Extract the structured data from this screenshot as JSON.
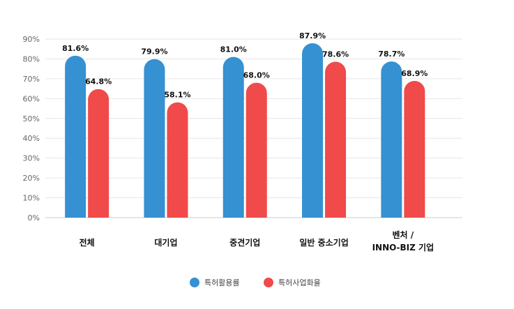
{
  "chart_data": {
    "type": "bar",
    "categories": [
      [
        "전체"
      ],
      [
        "대기업"
      ],
      [
        "중견기업"
      ],
      [
        "일반 중소기업"
      ],
      [
        "벤처 /",
        "INNO-BIZ 기업"
      ]
    ],
    "series": [
      {
        "name": "특허활용률",
        "color": "#3591d1",
        "values": [
          81.6,
          79.9,
          81.0,
          87.9,
          78.7
        ],
        "labels": [
          "81.6%",
          "79.9%",
          "81.0%",
          "87.9%",
          "78.7%"
        ]
      },
      {
        "name": "특허사업화율",
        "color": "#f04a4a",
        "values": [
          64.8,
          58.1,
          68.0,
          78.6,
          68.9
        ],
        "labels": [
          "64.8%",
          "58.1%",
          "68.0%",
          "78.6%",
          "68.9%"
        ]
      }
    ],
    "yticks": [
      "0%",
      "10%",
      "20%",
      "30%",
      "40%",
      "50%",
      "60%",
      "70%",
      "80%",
      "90%"
    ],
    "ylim": [
      0,
      90
    ],
    "grid": true,
    "legend_position": "bottom-center"
  }
}
